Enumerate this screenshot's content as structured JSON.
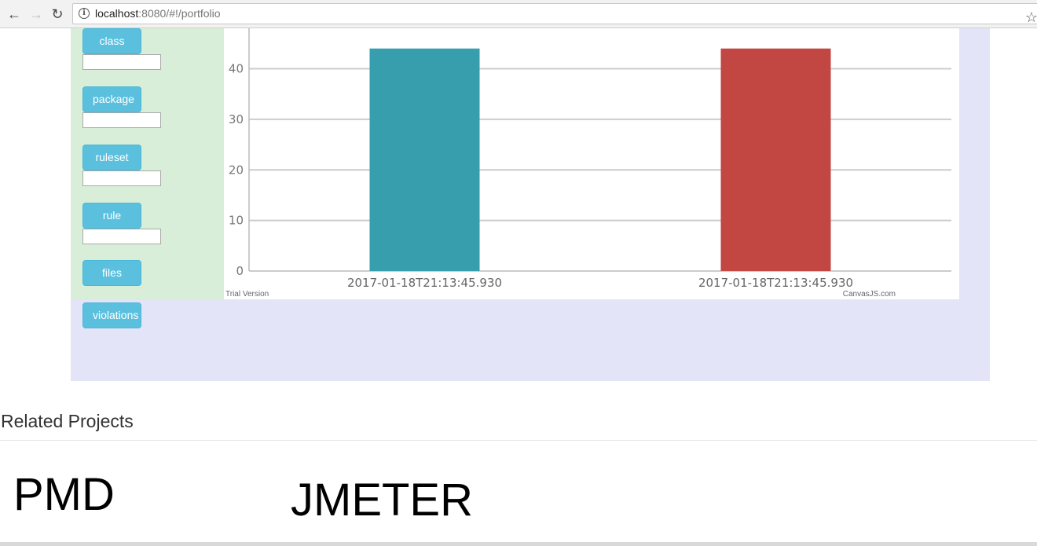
{
  "browser": {
    "back_icon": "arrow-left-icon",
    "forward_icon": "arrow-right-icon",
    "reload_icon": "reload-icon",
    "url_host": "localhost",
    "url_rest": ":8080/#!/portfolio",
    "info_icon": "info-icon",
    "bookmark_icon": "star-icon"
  },
  "filters": {
    "class_label": "class",
    "package_label": "package",
    "ruleset_label": "ruleset",
    "rule_label": "rule",
    "files_label": "files",
    "violations_label": "violations",
    "class_value": "",
    "package_value": "",
    "ruleset_value": "",
    "rule_value": ""
  },
  "chart_data": {
    "type": "bar",
    "categories": [
      "2017-01-18T21:13:45.930",
      "2017-01-18T21:13:45.930"
    ],
    "values": [
      44,
      44
    ],
    "colors": [
      "#369ead",
      "#c24642"
    ],
    "y_ticks": [
      "0",
      "10",
      "20",
      "30",
      "40"
    ],
    "ylim": [
      0,
      48
    ],
    "grid": true,
    "watermark_left": "Trial Version",
    "watermark_right": "CanvasJS.com"
  },
  "related": {
    "title": "Related Projects",
    "projects": [
      "PMD",
      "JMETER"
    ]
  },
  "colors": {
    "main_panel": "#e4e4f8",
    "side_panel": "#d8eed8",
    "button": "#5bc0de"
  }
}
